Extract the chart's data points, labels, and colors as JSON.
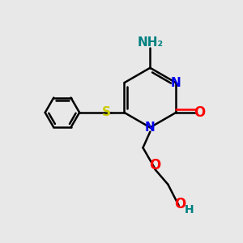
{
  "bg_color": "#e8e8e8",
  "atom_colors": {
    "N": "#0000ee",
    "O": "#ff0000",
    "S": "#cccc00",
    "NH2": "#008080",
    "C": "#000000",
    "bond": "#000000"
  }
}
